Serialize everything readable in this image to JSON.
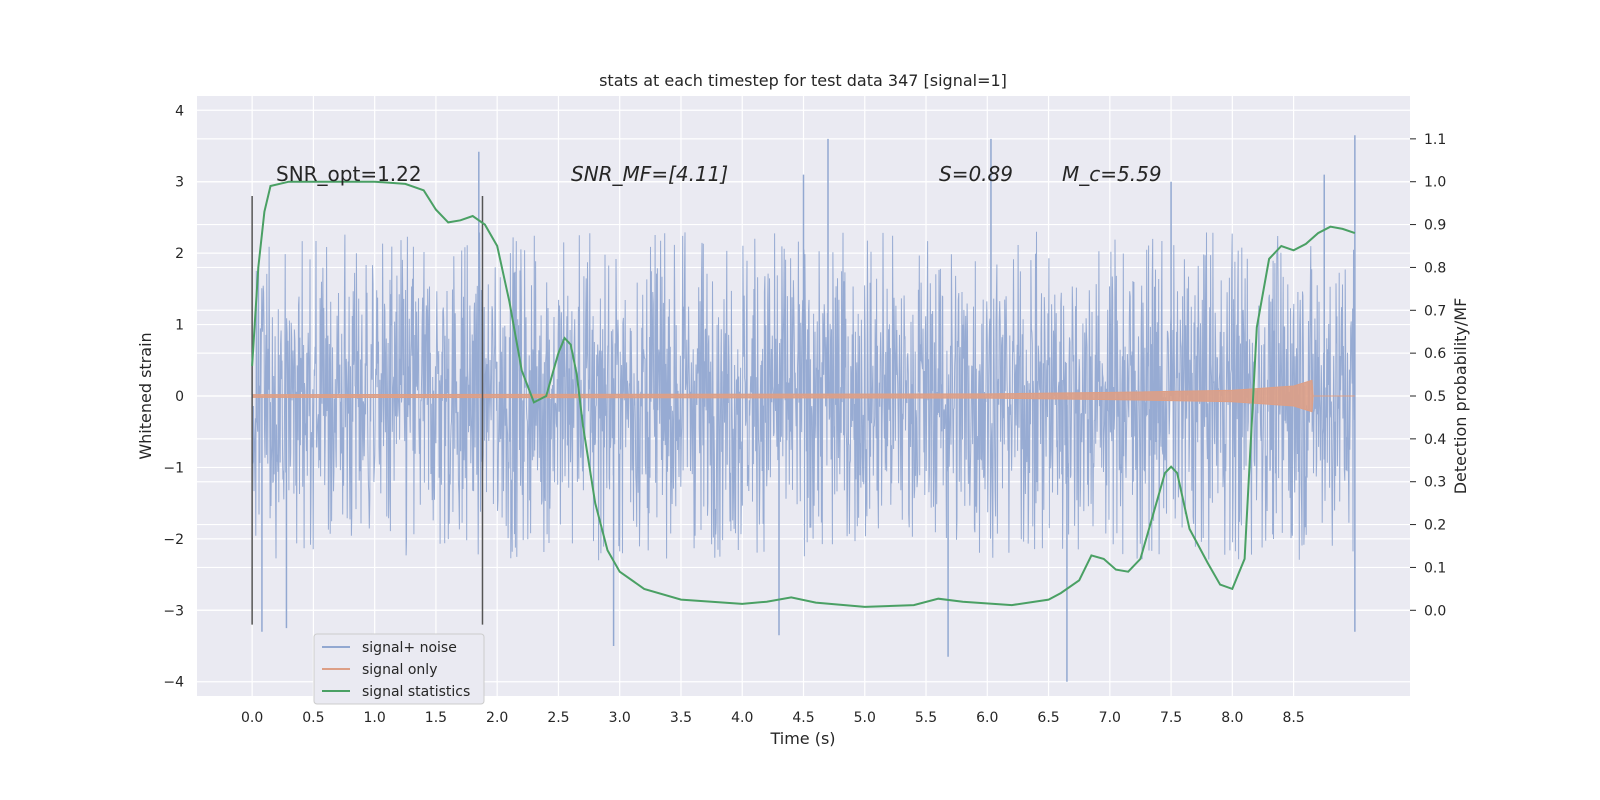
{
  "chart_data": {
    "type": "line",
    "title": "stats at each timestep for test data 347 [signal=1]",
    "xlabel": "Time (s)",
    "ylabel": "Whitened strain",
    "y2label": "Detection probability/MF",
    "xlim": [
      -0.45,
      9.45
    ],
    "ylim": [
      -4.2,
      4.2
    ],
    "y2lim": [
      -0.2,
      1.2
    ],
    "xticks": [
      0.0,
      0.5,
      1.0,
      1.5,
      2.0,
      2.5,
      3.0,
      3.5,
      4.0,
      4.5,
      5.0,
      5.5,
      6.0,
      6.5,
      7.0,
      7.5,
      8.0,
      8.5
    ],
    "xtick_labels": [
      "0.0",
      "0.5",
      "1.0",
      "1.5",
      "2.0",
      "2.5",
      "3.0",
      "3.5",
      "4.0",
      "4.5",
      "5.0",
      "5.5",
      "6.0",
      "6.5",
      "7.0",
      "7.5",
      "8.0",
      "8.5"
    ],
    "yticks": [
      4,
      3,
      2,
      1,
      0,
      -1,
      -2,
      -3,
      -4
    ],
    "ytick_labels": [
      "4",
      "3",
      "2",
      "1",
      "0",
      "−1",
      "−2",
      "−3",
      "−4"
    ],
    "y2ticks": [
      1.1,
      1.0,
      0.9,
      0.8,
      0.7,
      0.6,
      0.5,
      0.4,
      0.3,
      0.2,
      0.1,
      0.0
    ],
    "y2tick_labels": [
      "1.1",
      "1.0",
      "0.9",
      "0.8",
      "0.7",
      "0.6",
      "0.5",
      "0.4",
      "0.3",
      "0.2",
      "0.1",
      "0.0"
    ],
    "grid": true,
    "legend_position": "bottom-left",
    "legend": [
      {
        "label": "signal+ noise",
        "color": "#92a8d1"
      },
      {
        "label": "signal only",
        "color": "#dd9f86"
      },
      {
        "label": "signal statistics",
        "color": "#4aa064"
      }
    ],
    "annotations": [
      {
        "text": "SNR_opt=1.22",
        "x": 0.2,
        "y": 2.85
      },
      {
        "text": "SNR_MF=[4.11]",
        "x": 2.6,
        "y": 2.85
      },
      {
        "text": "S=0.89",
        "x": 5.6,
        "y": 2.85
      },
      {
        "text": "M_c=5.59",
        "x": 6.6,
        "y": 2.85
      }
    ],
    "vertical_markers": [
      {
        "x": 0.0,
        "ymin": -3.2,
        "ymax": 2.8
      },
      {
        "x": 1.88,
        "ymin": -3.2,
        "ymax": 2.8
      }
    ],
    "noise_series": {
      "name": "signal+ noise",
      "x_start": 0.0,
      "x_end": 9.0,
      "typical_range": [
        -2.3,
        2.3
      ],
      "peaks_high": [
        [
          1.85,
          3.42
        ],
        [
          4.7,
          3.6
        ],
        [
          6.03,
          3.6
        ],
        [
          9.0,
          3.65
        ],
        [
          8.75,
          3.1
        ],
        [
          4.5,
          3.1
        ],
        [
          7.5,
          3.0
        ]
      ],
      "peaks_low": [
        [
          0.08,
          -3.3
        ],
        [
          0.28,
          -3.25
        ],
        [
          2.95,
          -3.5
        ],
        [
          5.68,
          -3.65
        ],
        [
          6.65,
          -4.0
        ],
        [
          4.3,
          -3.35
        ],
        [
          9.0,
          -3.3
        ]
      ]
    },
    "signal_only": {
      "name": "signal only",
      "x": [
        0.0,
        6.0,
        7.0,
        8.0,
        8.5,
        8.65,
        8.66,
        9.0
      ],
      "amplitude": [
        0.02,
        0.03,
        0.05,
        0.08,
        0.14,
        0.22,
        0.0,
        0.0
      ]
    },
    "series": [
      {
        "name": "signal statistics",
        "axis": "right",
        "x": [
          0.0,
          0.05,
          0.1,
          0.15,
          0.3,
          0.6,
          1.0,
          1.25,
          1.4,
          1.5,
          1.6,
          1.7,
          1.8,
          1.9,
          2.0,
          2.1,
          2.2,
          2.3,
          2.4,
          2.5,
          2.55,
          2.6,
          2.65,
          2.7,
          2.8,
          2.9,
          3.0,
          3.2,
          3.5,
          4.0,
          4.2,
          4.4,
          4.6,
          5.0,
          5.4,
          5.6,
          5.8,
          6.2,
          6.5,
          6.6,
          6.75,
          6.85,
          6.95,
          7.05,
          7.15,
          7.25,
          7.35,
          7.45,
          7.5,
          7.55,
          7.65,
          7.8,
          7.9,
          8.0,
          8.1,
          8.2,
          8.3,
          8.4,
          8.5,
          8.6,
          8.7,
          8.8,
          8.9,
          9.0
        ],
        "y": [
          0.57,
          0.8,
          0.93,
          0.99,
          1.0,
          1.0,
          1.0,
          0.995,
          0.98,
          0.935,
          0.905,
          0.91,
          0.92,
          0.9,
          0.85,
          0.72,
          0.56,
          0.485,
          0.5,
          0.6,
          0.635,
          0.62,
          0.55,
          0.43,
          0.25,
          0.14,
          0.09,
          0.05,
          0.025,
          0.015,
          0.02,
          0.03,
          0.018,
          0.008,
          0.012,
          0.027,
          0.02,
          0.012,
          0.025,
          0.04,
          0.07,
          0.128,
          0.12,
          0.095,
          0.09,
          0.12,
          0.22,
          0.32,
          0.335,
          0.32,
          0.19,
          0.11,
          0.06,
          0.05,
          0.12,
          0.66,
          0.82,
          0.85,
          0.84,
          0.855,
          0.88,
          0.895,
          0.89,
          0.88
        ]
      }
    ]
  }
}
